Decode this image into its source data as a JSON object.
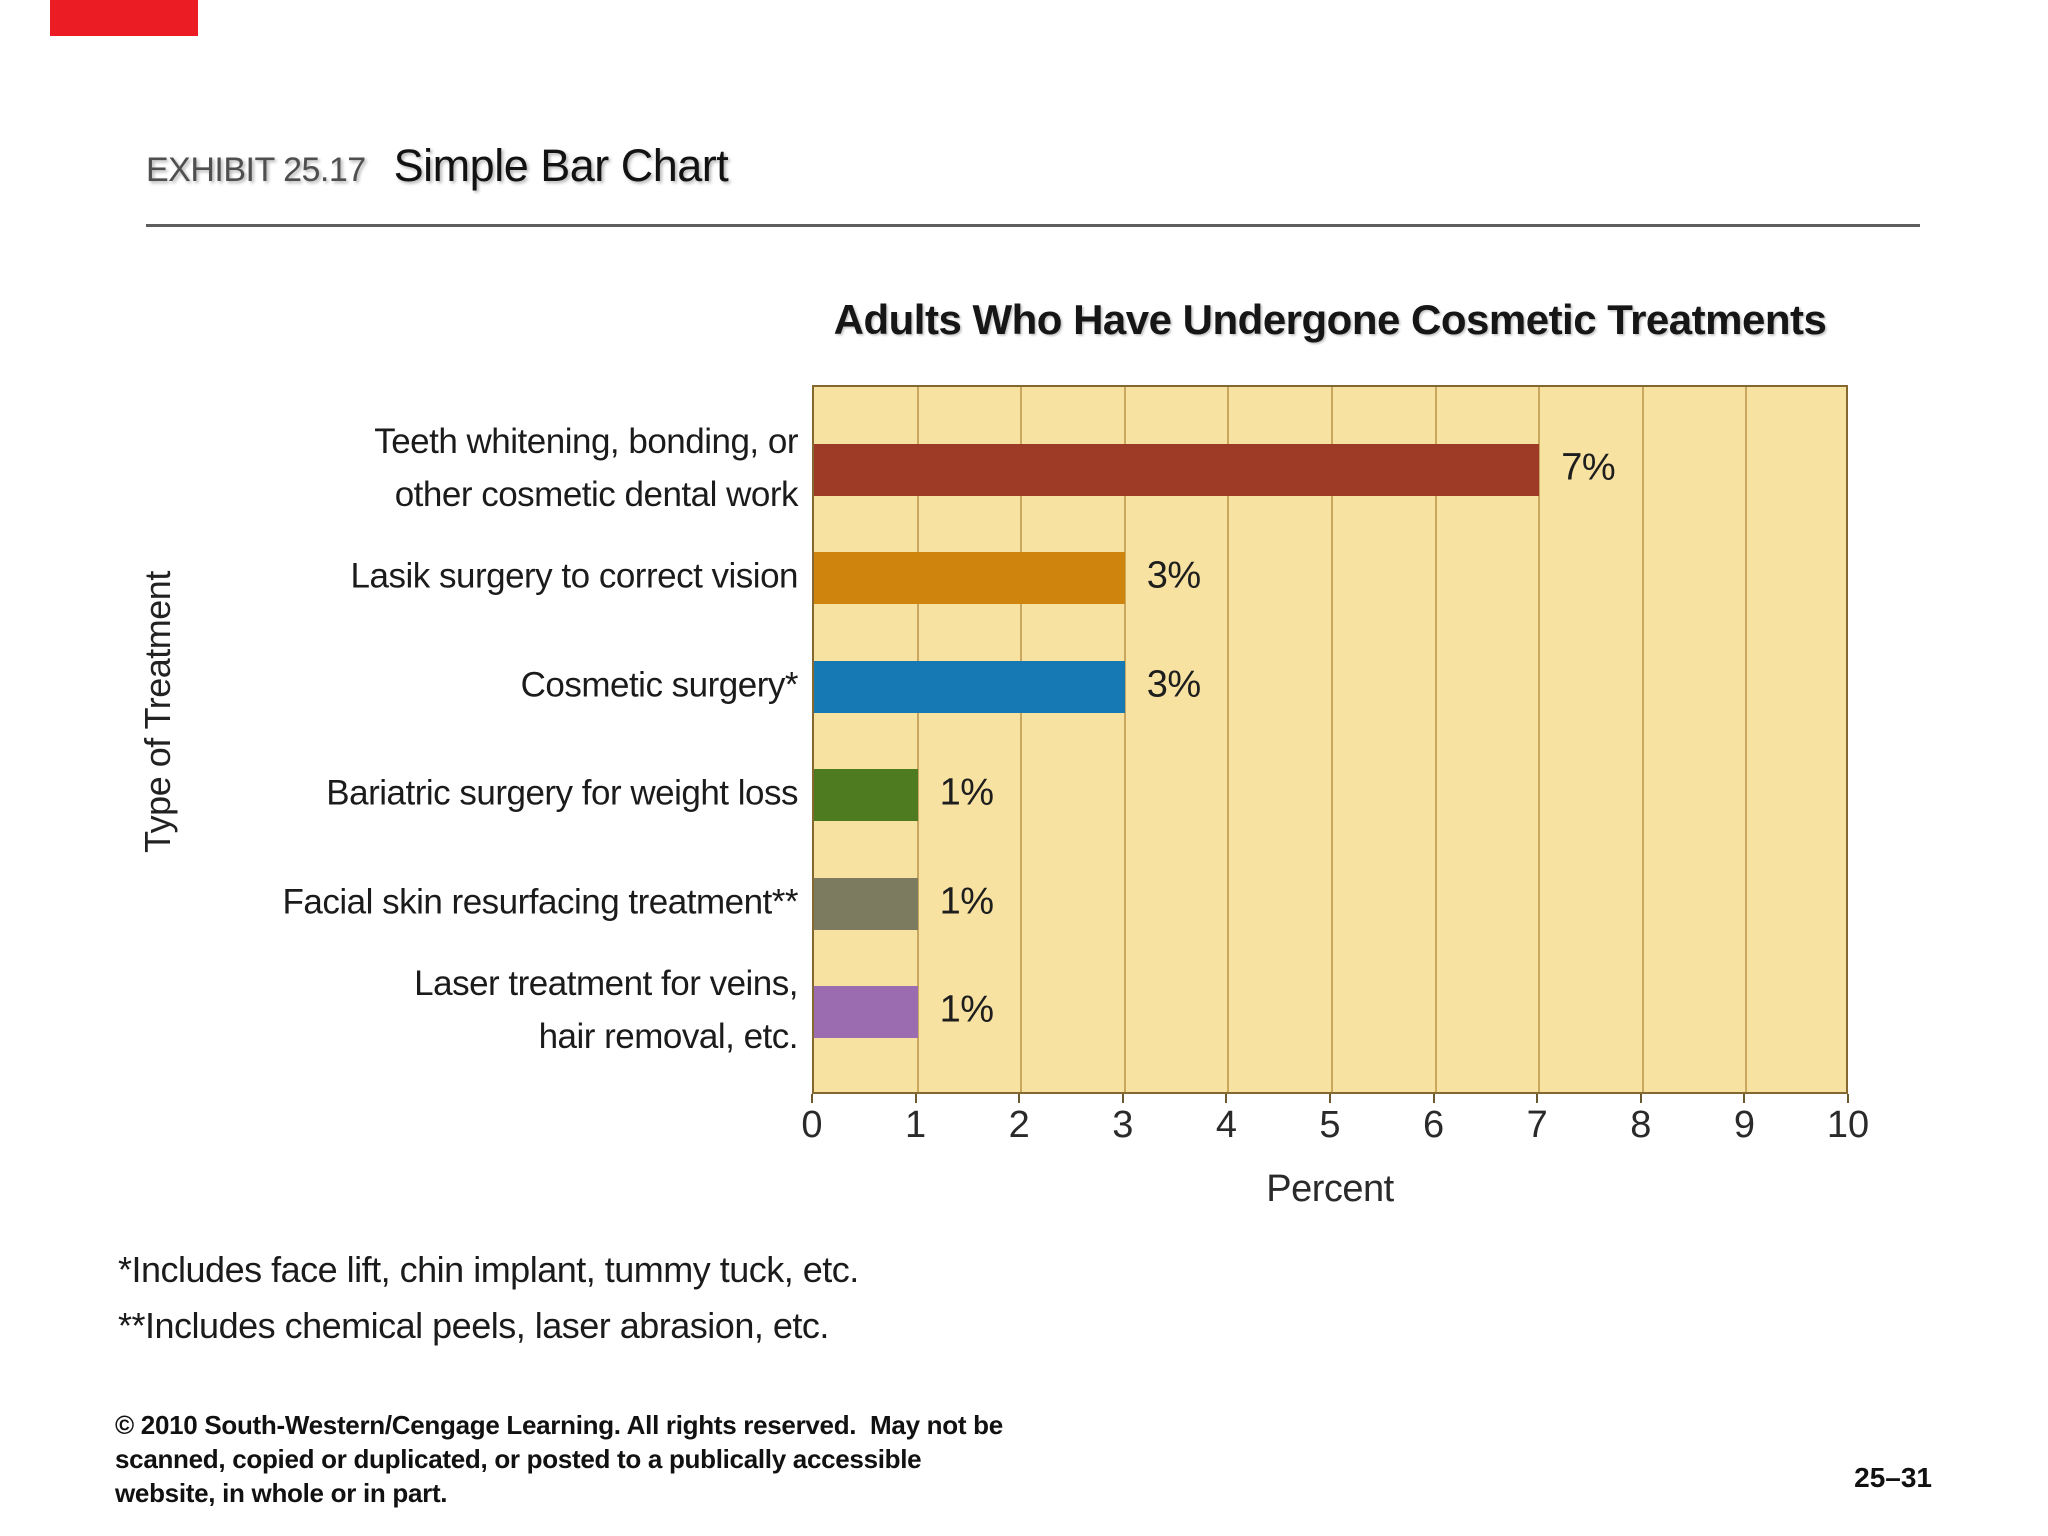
{
  "decoration": {
    "red_marker_color": "#ec1c24"
  },
  "header": {
    "exhibit_label": "EXHIBIT 25.17",
    "exhibit_title": "Simple Bar Chart"
  },
  "chart_data": {
    "type": "bar",
    "orientation": "horizontal",
    "title": "Adults Who Have Undergone Cosmetic Treatments",
    "categories": [
      "Teeth whitening, bonding, or other cosmetic dental work",
      "Lasik surgery to correct vision",
      "Cosmetic surgery*",
      "Bariatric surgery for weight loss",
      "Facial skin resurfacing treatment**",
      "Laser treatment for veins, hair removal, etc."
    ],
    "category_lines": [
      [
        "Teeth whitening, bonding, or",
        "other cosmetic dental work"
      ],
      [
        "Lasik surgery to correct vision"
      ],
      [
        "Cosmetic surgery*"
      ],
      [
        "Bariatric surgery for weight loss"
      ],
      [
        "Facial skin resurfacing treatment**"
      ],
      [
        "Laser treatment for veins,",
        "hair removal, etc."
      ]
    ],
    "values": [
      7,
      3,
      3,
      1,
      1,
      1
    ],
    "value_labels": [
      "7%",
      "3%",
      "3%",
      "1%",
      "1%",
      "1%"
    ],
    "bar_colors": [
      "#9e3b27",
      "#cf850d",
      "#1779b3",
      "#4e7b20",
      "#7c7a5f",
      "#9c6cb0"
    ],
    "xlabel": "Percent",
    "ylabel": "Type of Treatment",
    "xlim": [
      0,
      10
    ],
    "xticks": [
      0,
      1,
      2,
      3,
      4,
      5,
      6,
      7,
      8,
      9,
      10
    ],
    "grid": true,
    "plot_bg": "#f8e2a1",
    "grid_color": "#c9a75f",
    "legend": false
  },
  "footnotes": {
    "lines": [
      "*Includes face lift, chin implant, tummy tuck, etc.",
      "**Includes chemical peels, laser abrasion, etc."
    ]
  },
  "footer": {
    "copyright_lines": [
      "© 2010 South-Western/Cengage Learning. All rights reserved.  May not be",
      "scanned, copied or duplicated, or posted to a publically accessible",
      "website, in whole or in part."
    ],
    "page_number": "25–31"
  }
}
